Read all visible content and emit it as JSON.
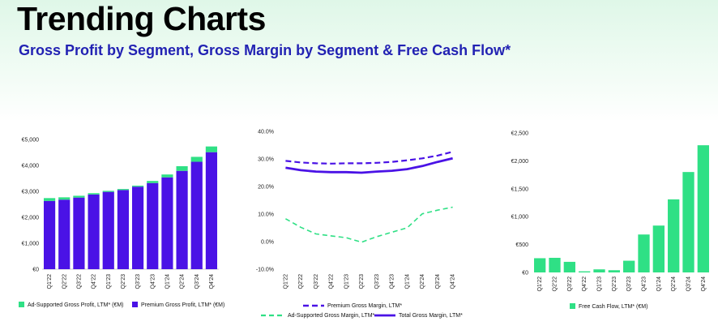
{
  "header": {
    "title": "Trending Charts",
    "subtitle": "Gross Profit by Segment, Gross Margin by Segment & Free Cash Flow*"
  },
  "colors": {
    "premium": "#4a12e6",
    "ad_supported": "#2fe085",
    "subtitle": "#2222b3"
  },
  "chart_data": [
    {
      "type": "bar",
      "stacked": true,
      "categories": [
        "Q1'22",
        "Q2'22",
        "Q3'22",
        "Q4'22",
        "Q1'23",
        "Q2'23",
        "Q3'23",
        "Q4'23",
        "Q1'24",
        "Q2'24",
        "Q3'24",
        "Q4'24"
      ],
      "series": [
        {
          "name": "Premium Gross Profit, LTM* (€M)",
          "values": [
            2630,
            2680,
            2760,
            2880,
            2980,
            3050,
            3180,
            3320,
            3540,
            3790,
            4140,
            4510
          ]
        },
        {
          "name": "Ad-Supported Gross Profit, LTM* (€M)",
          "values": [
            110,
            90,
            70,
            50,
            40,
            40,
            40,
            80,
            110,
            180,
            190,
            220
          ]
        }
      ],
      "yticks": [
        "€0",
        "€1,000",
        "€2,000",
        "€3,000",
        "€4,000",
        "€5,000"
      ],
      "ylim": [
        0,
        5000
      ],
      "legend": "bottom"
    },
    {
      "type": "line",
      "categories": [
        "Q1'22",
        "Q2'22",
        "Q3'22",
        "Q4'22",
        "Q1'23",
        "Q2'23",
        "Q3'23",
        "Q4'23",
        "Q1'24",
        "Q2'24",
        "Q3'24",
        "Q4'24"
      ],
      "series": [
        {
          "name": "Premium Gross Margin, LTM*",
          "values": [
            29.3,
            28.7,
            28.4,
            28.3,
            28.4,
            28.4,
            28.6,
            28.9,
            29.5,
            30.2,
            31.2,
            32.6
          ]
        },
        {
          "name": "Total Gross Margin, LTM*",
          "values": [
            26.8,
            25.9,
            25.4,
            25.2,
            25.2,
            25.0,
            25.4,
            25.7,
            26.3,
            27.4,
            28.9,
            30.2
          ]
        },
        {
          "name": "Ad-Supported Gross Margin, LTM*",
          "values": [
            8.3,
            5.2,
            2.8,
            2.1,
            1.4,
            -0.2,
            1.8,
            3.4,
            5.0,
            10.1,
            11.4,
            12.5
          ]
        }
      ],
      "yticks": [
        "-10.0%",
        "0.0%",
        "10.0%",
        "20.0%",
        "30.0%",
        "40.0%"
      ],
      "ylim": [
        -10,
        40
      ],
      "legend": "bottom"
    },
    {
      "type": "bar",
      "categories": [
        "Q1'22",
        "Q2'22",
        "Q3'22",
        "Q4'22",
        "Q1'23",
        "Q2'23",
        "Q3'23",
        "Q4'23",
        "Q1'24",
        "Q2'24",
        "Q3'24",
        "Q4'24"
      ],
      "series": [
        {
          "name": "Free Cash Flow, LTM* (€M)",
          "values": [
            255,
            262,
            190,
            20,
            55,
            40,
            210,
            680,
            840,
            1310,
            1800,
            2280
          ]
        }
      ],
      "yticks": [
        "€0",
        "€500",
        "€1,000",
        "€1,500",
        "€2,000",
        "€2,500"
      ],
      "ylim": [
        0,
        2500
      ],
      "legend": "bottom"
    }
  ]
}
